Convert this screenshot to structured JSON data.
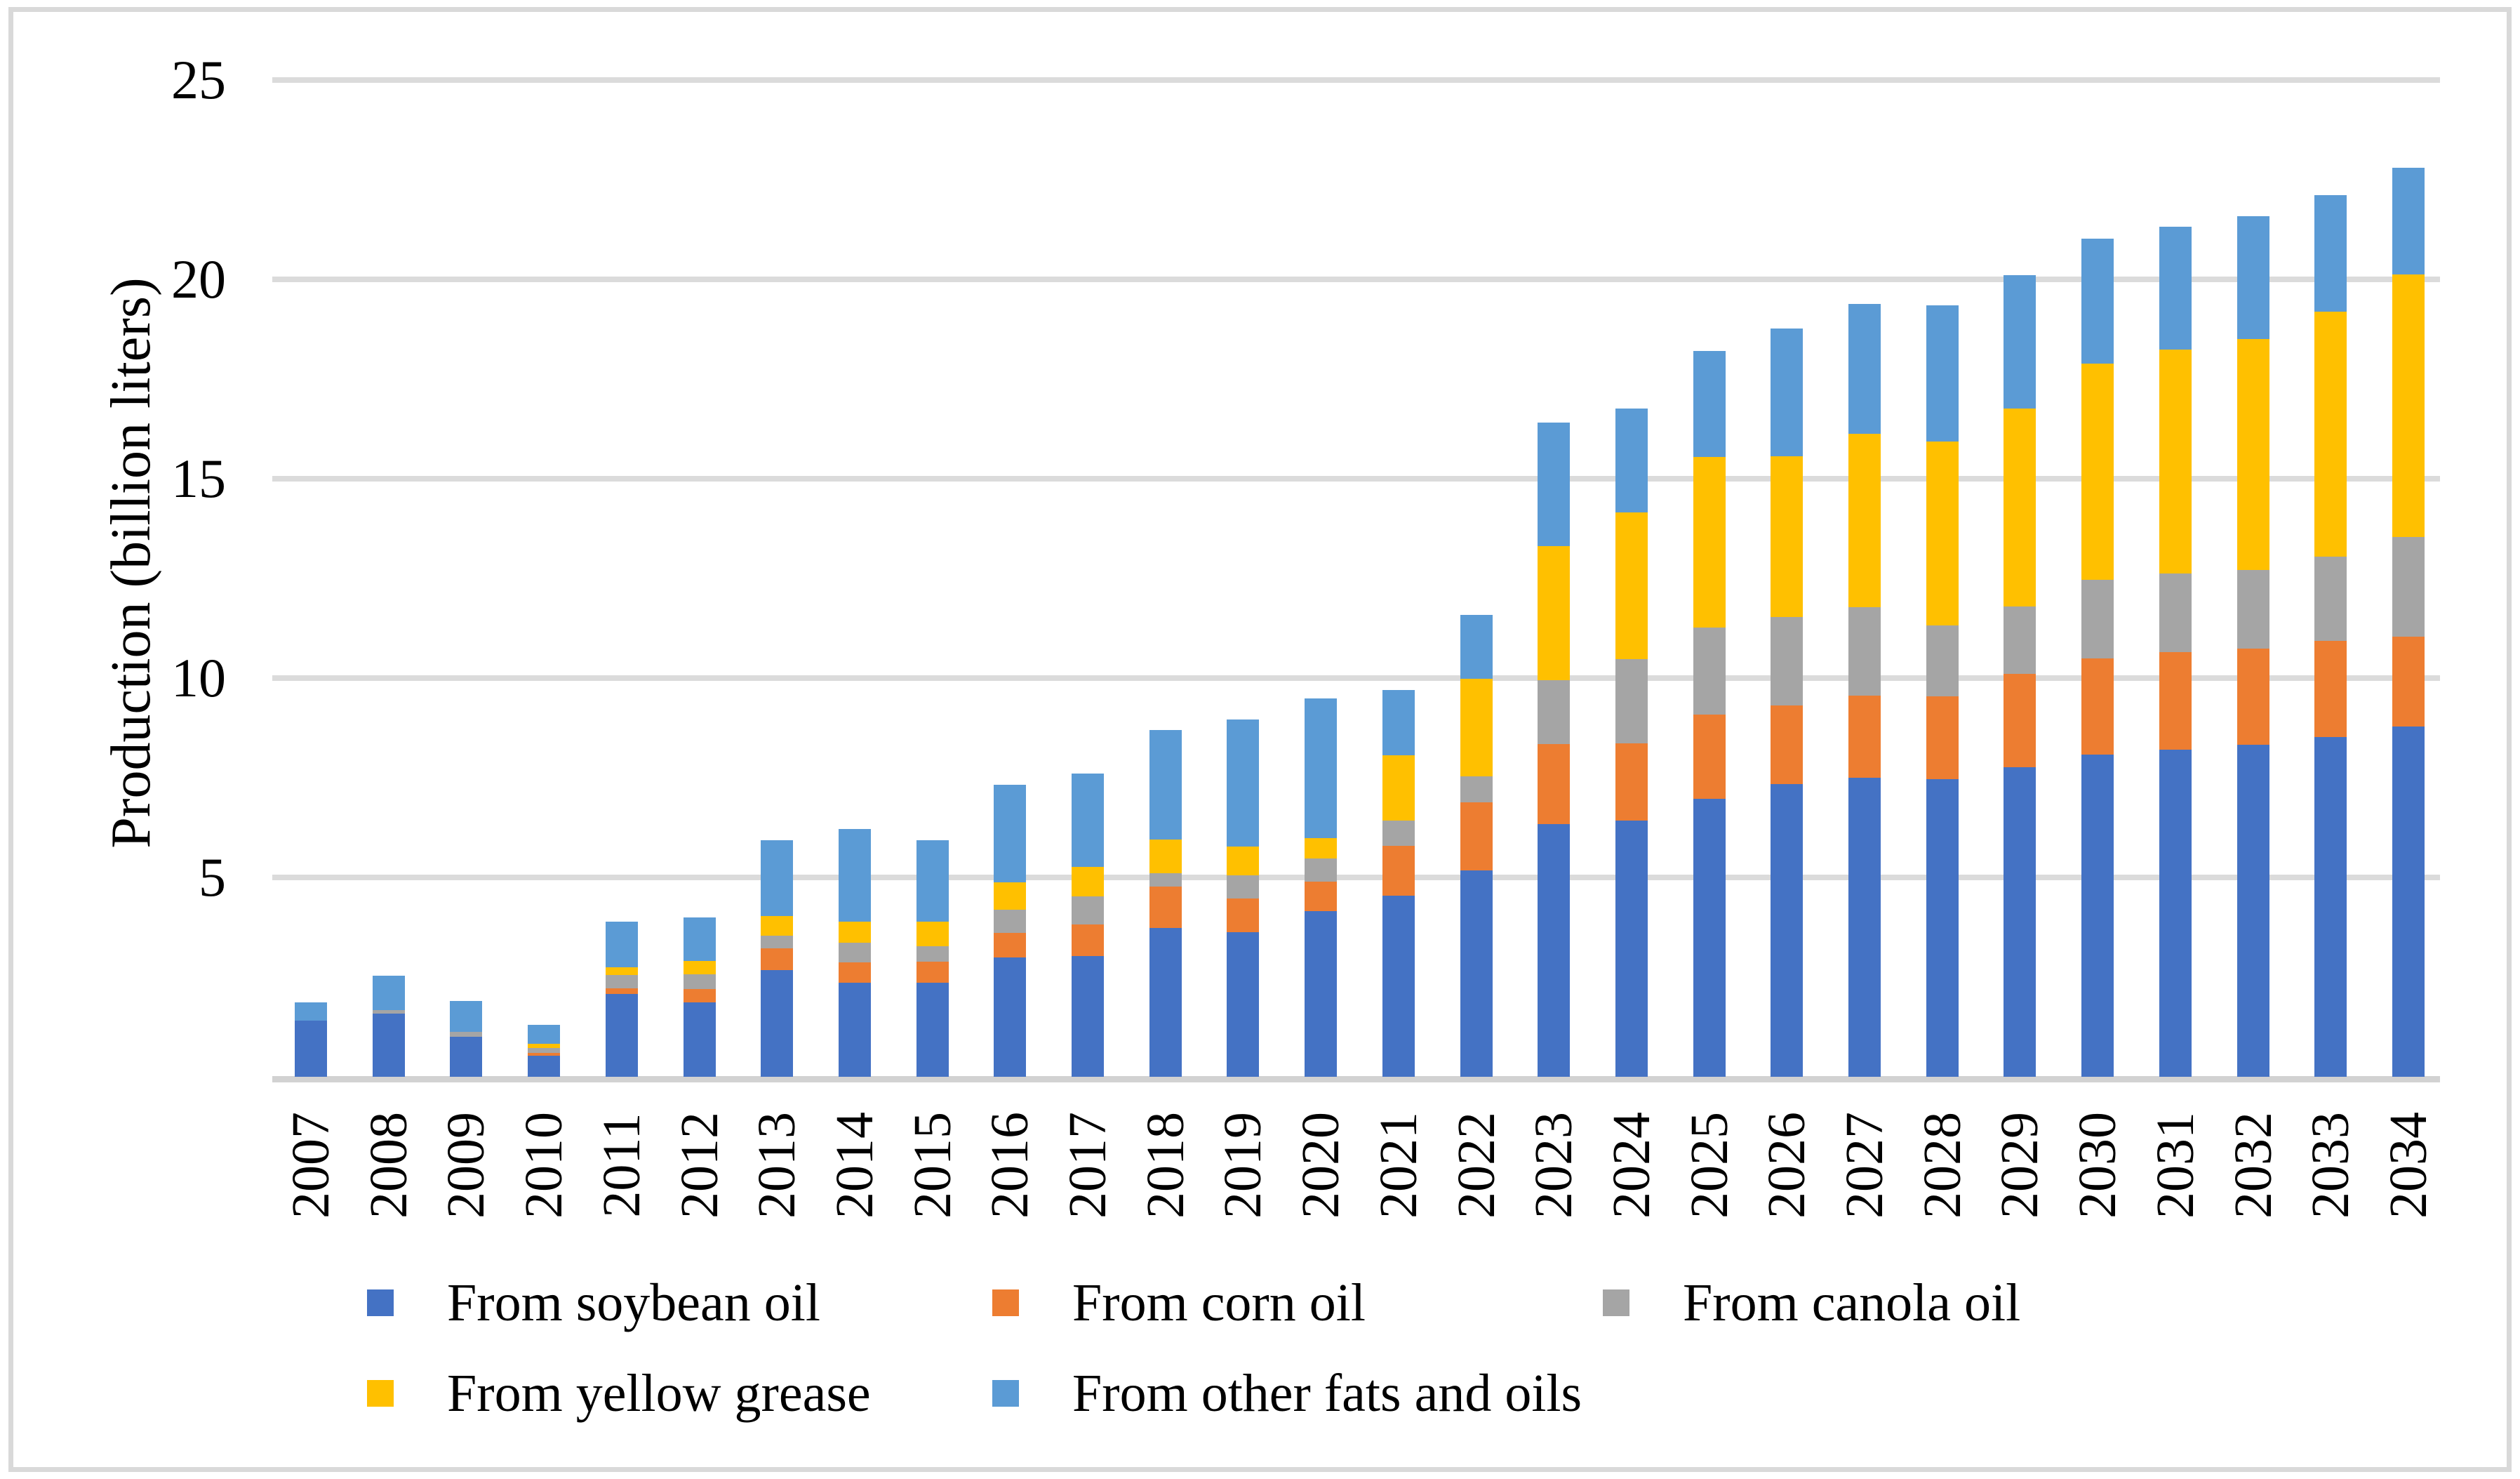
{
  "figure": {
    "y_axis_title": "Production (billion liters)",
    "background_color": "#FFFFFF",
    "frame_color": "#D9D9D9",
    "gridline_color": "#DBDBDB",
    "axis_line_color": "#D2D2D2",
    "text_color": "#000000"
  },
  "chart_data": {
    "type": "bar",
    "stacked": true,
    "title": "",
    "xlabel": "",
    "ylabel": "Production (billion liters)",
    "ylim": [
      0,
      25
    ],
    "yticks": [
      5,
      10,
      15,
      20,
      25
    ],
    "grid": "horizontal",
    "legend_position": "bottom",
    "categories": [
      "2007",
      "2008",
      "2009",
      "2010",
      "2011",
      "2012",
      "2013",
      "2014",
      "2015",
      "2016",
      "2017",
      "2018",
      "2019",
      "2020",
      "2021",
      "2022",
      "2023",
      "2024",
      "2025",
      "2026",
      "2027",
      "2028",
      "2029",
      "2030",
      "2031",
      "2032",
      "2033",
      "2034"
    ],
    "series": [
      {
        "name": "From soybean oil",
        "color": "#4472C4",
        "values": [
          1.4,
          1.58,
          1.0,
          0.53,
          2.07,
          1.87,
          2.68,
          2.36,
          2.36,
          2.99,
          3.03,
          3.73,
          3.63,
          4.16,
          4.54,
          5.18,
          6.34,
          6.42,
          6.98,
          7.34,
          7.5,
          7.47,
          7.77,
          8.08,
          8.21,
          8.33,
          8.52,
          8.79
        ]
      },
      {
        "name": "From corn oil",
        "color": "#ED7D31",
        "values": [
          0.0,
          0.0,
          0.0,
          0.07,
          0.14,
          0.33,
          0.54,
          0.51,
          0.53,
          0.62,
          0.79,
          1.03,
          0.85,
          0.74,
          1.25,
          1.71,
          2.0,
          1.93,
          2.12,
          1.98,
          2.06,
          2.07,
          2.35,
          2.41,
          2.44,
          2.41,
          2.42,
          2.26
        ]
      },
      {
        "name": "From canola oil",
        "color": "#A5A5A5",
        "values": [
          0.0,
          0.08,
          0.13,
          0.12,
          0.33,
          0.37,
          0.32,
          0.49,
          0.38,
          0.58,
          0.7,
          0.33,
          0.58,
          0.58,
          0.63,
          0.66,
          1.6,
          2.12,
          2.19,
          2.21,
          2.21,
          1.78,
          1.69,
          1.97,
          1.97,
          1.97,
          2.12,
          2.5
        ]
      },
      {
        "name": "From yellow grease",
        "color": "#FFC000",
        "values": [
          0.0,
          0.0,
          0.0,
          0.11,
          0.19,
          0.33,
          0.49,
          0.53,
          0.62,
          0.69,
          0.74,
          0.85,
          0.73,
          0.51,
          1.64,
          2.45,
          3.36,
          3.68,
          4.27,
          4.03,
          4.34,
          4.62,
          4.96,
          5.42,
          5.62,
          5.8,
          6.15,
          6.58
        ]
      },
      {
        "name": "From other fats and oils",
        "color": "#5B9BD5",
        "values": [
          0.45,
          0.86,
          0.77,
          0.47,
          1.14,
          1.1,
          1.9,
          2.32,
          2.04,
          2.44,
          2.35,
          2.75,
          3.19,
          3.51,
          1.64,
          1.61,
          3.1,
          2.61,
          2.65,
          3.2,
          3.25,
          3.42,
          3.35,
          3.13,
          3.08,
          3.08,
          2.93,
          2.68
        ]
      }
    ],
    "legend_layout": {
      "row1": [
        "From soybean oil",
        "From corn oil",
        "From canola oil"
      ],
      "row2": [
        "From yellow grease",
        "From other fats and oils"
      ]
    }
  }
}
